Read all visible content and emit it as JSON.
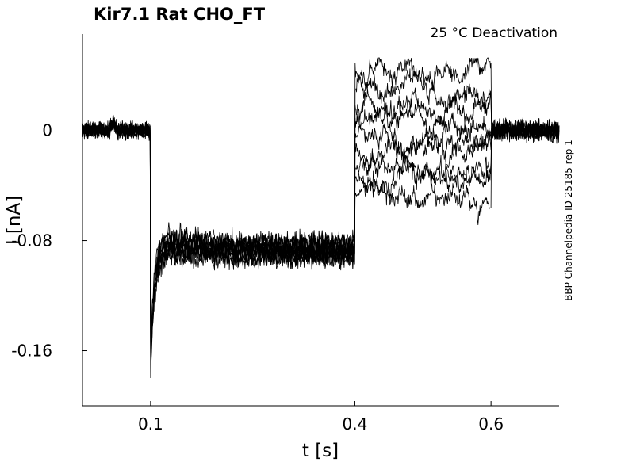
{
  "chart_data": {
    "type": "line",
    "title": "Kir7.1  Rat  CHO_FT",
    "subtitle": "25 °C  Deactivation",
    "xlabel": "t [s]",
    "ylabel": "I [nA]",
    "side_note": "BBP Channelpedia ID 25185 rep 1",
    "xlim": [
      0.0,
      0.7
    ],
    "ylim": [
      -0.2,
      0.07
    ],
    "x_ticks": [
      {
        "value": 0.1,
        "label": "0.1"
      },
      {
        "value": 0.4,
        "label": "0.4"
      },
      {
        "value": 0.6,
        "label": "0.6"
      }
    ],
    "y_ticks": [
      {
        "value": 0,
        "label": "0"
      },
      {
        "value": -0.08,
        "label": "-0.08"
      },
      {
        "value": -0.16,
        "label": "-0.16"
      }
    ],
    "grid": false,
    "line_color": "#000000",
    "protocol_segments": [
      {
        "t_start": 0.0,
        "t_end": 0.1,
        "level": 0.0
      },
      {
        "t_start": 0.1,
        "t_end": 0.4,
        "level": -0.09,
        "peak": -0.175
      },
      {
        "t_start": 0.4,
        "t_end": 0.6,
        "levels": [
          0.045,
          0.03,
          0.015,
          0.005,
          -0.005,
          -0.015,
          -0.025,
          -0.035,
          -0.045
        ]
      },
      {
        "t_start": 0.6,
        "t_end": 0.7,
        "level": 0.0
      }
    ],
    "sweeps": 9
  }
}
